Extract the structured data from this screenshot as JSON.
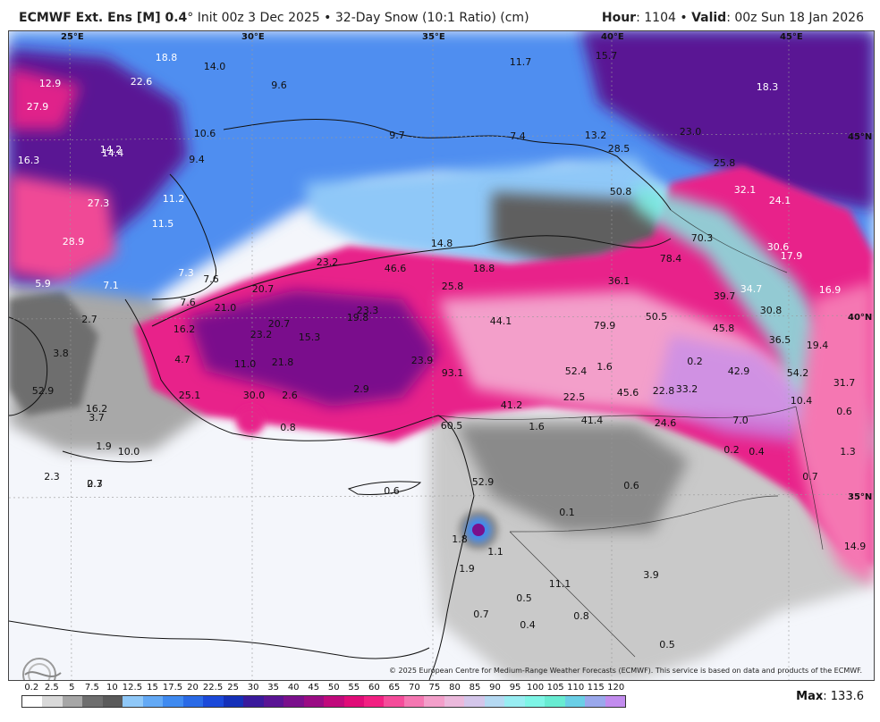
{
  "header": {
    "model": "ECMWF Ext. Ens [M] 0.4",
    "degree": "°",
    "init": " Init 00z 3 Dec 2025",
    "bullet": " • ",
    "product": "32-Day Snow (10:1 Ratio) (cm)",
    "hour_label": "Hour",
    "hour_value": ": 1104",
    "valid_label": "Valid",
    "valid_value": ": 00z Sun 18 Jan 2026"
  },
  "copyright": "© 2025 European Centre for Medium-Range Weather Forecasts (ECMWF). This service is based on data and products of the ECMWF.",
  "legend": {
    "ticks": [
      "0.2",
      "2.5",
      "5",
      "7.5",
      "10",
      "12.5",
      "15",
      "17.5",
      "20",
      "22.5",
      "25",
      "30",
      "35",
      "40",
      "45",
      "50",
      "55",
      "60",
      "65",
      "70",
      "75",
      "80",
      "85",
      "90",
      "95",
      "100",
      "105",
      "110",
      "115",
      "120"
    ],
    "colors": [
      "#ffffff",
      "#d9d9d9",
      "#a6a6a6",
      "#6e6e6e",
      "#5a5a5a",
      "#8fc8f8",
      "#63a9f5",
      "#3f8af0",
      "#2a6ae6",
      "#1b49d9",
      "#1530b8",
      "#3a1a9c",
      "#5a1494",
      "#7a108c",
      "#9a0c84",
      "#c00a7c",
      "#e00c78",
      "#f22082",
      "#f54c9a",
      "#f577b2",
      "#f39fca",
      "#ebb9dc",
      "#d4c6ea",
      "#b5d9f2",
      "#98edf2",
      "#7ef5e6",
      "#68ecd2",
      "#6acfe6",
      "#9aa8ec",
      "#c28cee"
    ],
    "max_label": "Max",
    "max_value": ": 133.6"
  },
  "map": {
    "lat_lon_labels": [
      "25°E",
      "30°E",
      "35°E",
      "40°E",
      "45°E",
      "45°N",
      "40°N",
      "35°N"
    ],
    "values": [
      "18.8",
      "14.0",
      "12.9",
      "22.6",
      "27.9",
      "9.6",
      "11.7",
      "15.7",
      "18.3",
      "10.6",
      "9.7",
      "7.4",
      "13.2",
      "14.2",
      "16.3",
      "14.4",
      "9.4",
      "23.0",
      "28.5",
      "25.8",
      "32.1",
      "24.1",
      "27.3",
      "11.2",
      "50.8",
      "11.5",
      "28.9",
      "70.3",
      "14.8",
      "30.6",
      "17.9",
      "23.2",
      "46.6",
      "18.8",
      "78.4",
      "36.1",
      "5.9",
      "7.1",
      "7.3",
      "7.6",
      "20.7",
      "25.8",
      "34.7",
      "39.7",
      "16.9",
      "2.7",
      "7.6",
      "21.0",
      "23.3",
      "19.8",
      "30.8",
      "44.1",
      "50.5",
      "20.7",
      "79.9",
      "45.8",
      "16.2",
      "23.2",
      "15.3",
      "3.8",
      "36.5",
      "19.4",
      "4.7",
      "11.0",
      "21.8",
      "23.9",
      "0.2",
      "1.6",
      "93.1",
      "52.4",
      "42.9",
      "54.2",
      "52.9",
      "31.7",
      "2.9",
      "33.2",
      "22.8",
      "45.6",
      "22.5",
      "25.1",
      "30.0",
      "2.6",
      "10.4",
      "16.2",
      "41.2",
      "0.6",
      "41.4",
      "24.6",
      "3.7",
      "7.0",
      "0.8",
      "60.5",
      "1.6",
      "1.9",
      "10.0",
      "0.2",
      "0.4",
      "1.3",
      "2.3",
      "2.3",
      "52.9",
      "0.7",
      "0.6",
      "0.6",
      "0.1",
      "0.7",
      "14.9",
      "1.8",
      "1.1",
      "1.9",
      "3.9",
      "0.5",
      "11.1",
      "0.7",
      "0.8",
      "0.4",
      "0.5",
      "0.1",
      "0.2"
    ]
  }
}
